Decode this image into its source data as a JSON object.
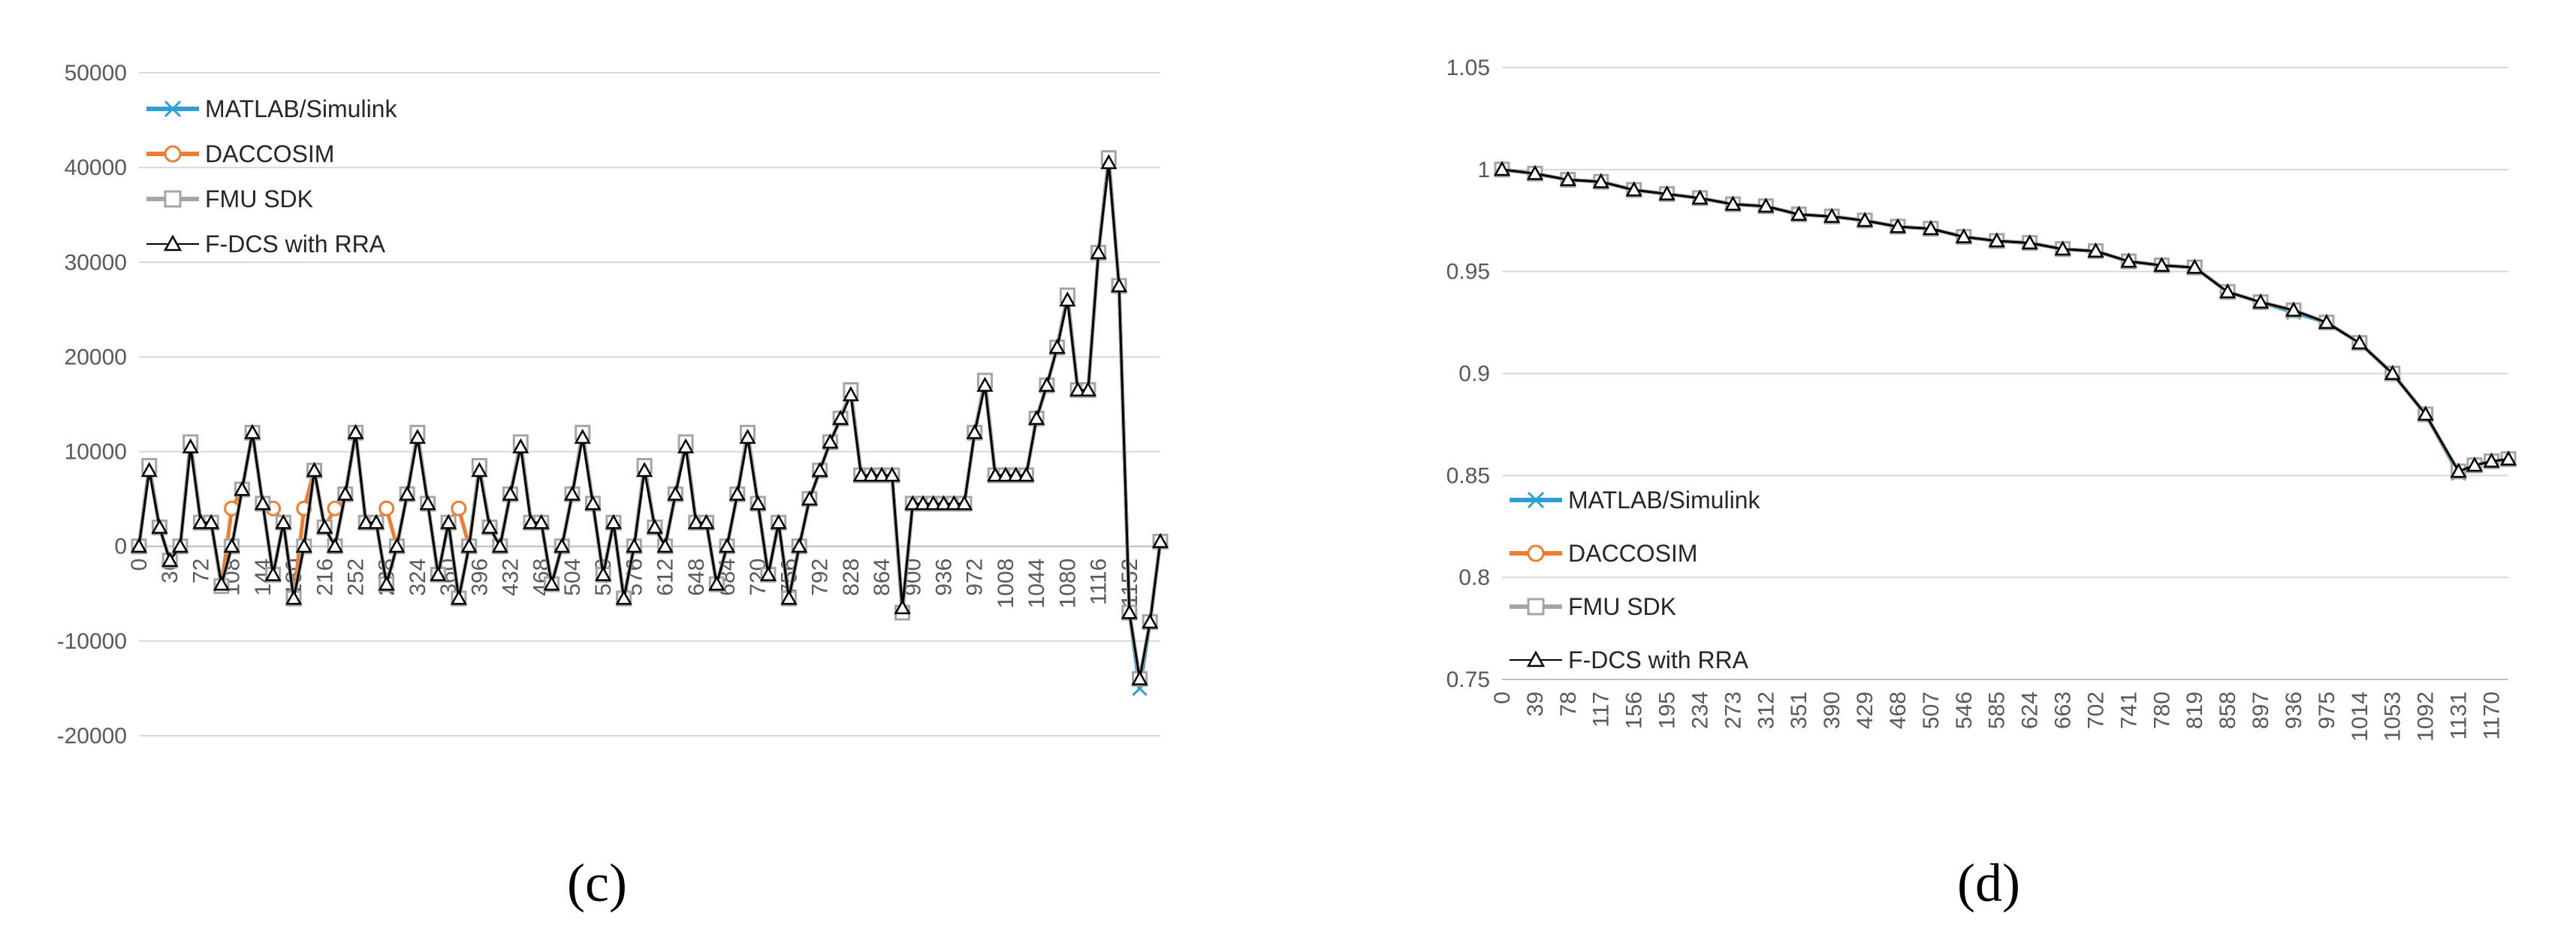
{
  "chart_data": [
    {
      "type": "line",
      "panel_label": "(c)",
      "title": "",
      "xlabel": "",
      "ylabel": "",
      "ylim": [
        -20000,
        50000
      ],
      "y_ticks": [
        "50000",
        "40000",
        "30000",
        "20000",
        "10000",
        "0",
        "-10000",
        "-20000"
      ],
      "x_ticks": [
        "0",
        "36",
        "72",
        "108",
        "144",
        "180",
        "216",
        "252",
        "288",
        "324",
        "360",
        "396",
        "432",
        "468",
        "504",
        "540",
        "576",
        "612",
        "648",
        "684",
        "720",
        "756",
        "792",
        "828",
        "864",
        "900",
        "936",
        "972",
        "1008",
        "1044",
        "1080",
        "1116",
        "1152"
      ],
      "grid": true,
      "legend_position": "top-left",
      "legend": [
        "MATLAB/Simulink",
        "DACCOSIM",
        "FMU SDK",
        "F-DCS with RRA"
      ],
      "x": [
        0,
        12,
        24,
        36,
        48,
        60,
        72,
        84,
        96,
        108,
        120,
        132,
        144,
        156,
        168,
        180,
        192,
        204,
        216,
        228,
        240,
        252,
        264,
        276,
        288,
        300,
        312,
        324,
        336,
        348,
        360,
        372,
        384,
        396,
        408,
        420,
        432,
        444,
        456,
        468,
        480,
        492,
        504,
        516,
        528,
        540,
        552,
        564,
        576,
        588,
        600,
        612,
        624,
        636,
        648,
        660,
        672,
        684,
        696,
        708,
        720,
        732,
        744,
        756,
        768,
        780,
        792,
        804,
        816,
        828,
        840,
        852,
        864,
        876,
        888,
        900,
        912,
        924,
        936,
        948,
        960,
        972,
        984,
        996,
        1008,
        1020,
        1032,
        1044,
        1056,
        1068,
        1080,
        1092,
        1104,
        1116,
        1128,
        1140,
        1152,
        1164,
        1176,
        1188
      ],
      "series": [
        {
          "name": "MATLAB/Simulink",
          "color": "#2e9fd6",
          "marker": "x",
          "values": [
            0,
            8500,
            2000,
            -1500,
            0,
            11000,
            2500,
            2500,
            -4200,
            0,
            6000,
            12000,
            4500,
            -3000,
            2500,
            -5500,
            0,
            8000,
            2000,
            0,
            5500,
            12000,
            2500,
            2500,
            -4000,
            0,
            5500,
            12000,
            4500,
            -3000,
            2500,
            -5500,
            0,
            8500,
            2000,
            0,
            5500,
            11000,
            2500,
            2500,
            -4000,
            0,
            5500,
            12000,
            4500,
            -3000,
            2500,
            -5500,
            0,
            8500,
            2000,
            0,
            5500,
            11000,
            2500,
            2500,
            -4000,
            0,
            5500,
            12000,
            4500,
            -3000,
            2500,
            -5500,
            0,
            5000,
            8000,
            11000,
            13500,
            16500,
            7500,
            7500,
            7500,
            7500,
            -7000,
            4500,
            4500,
            4500,
            4500,
            4500,
            4500,
            12000,
            17500,
            7500,
            7500,
            7500,
            7500,
            13500,
            17000,
            21000,
            26500,
            16500,
            16500,
            31000,
            41000,
            27500,
            -7000,
            -15000,
            -8000,
            500
          ]
        },
        {
          "name": "DACCOSIM",
          "color": "#ed7d31",
          "marker": "o",
          "values": [
            0,
            8500,
            2000,
            -1500,
            0,
            11000,
            2500,
            2500,
            -4200,
            4000,
            6000,
            12000,
            4500,
            4000,
            2500,
            -5500,
            4000,
            8000,
            2000,
            4000,
            5500,
            12000,
            2500,
            2500,
            4000,
            0,
            5500,
            12000,
            4500,
            -3000,
            2500,
            4000,
            0,
            8500,
            2000,
            0,
            5500,
            11000,
            2500,
            2500,
            -4000,
            0,
            5500,
            12000,
            4500,
            -3000,
            2500,
            -5500,
            0,
            8500,
            2000,
            0,
            5500,
            11000,
            2500,
            2500,
            -4000,
            0,
            5500,
            12000,
            4500,
            -3000,
            2500,
            -5500,
            0,
            5000,
            8000,
            11000,
            13500,
            16500,
            7500,
            7500,
            7500,
            7500,
            -7000,
            4500,
            4500,
            4500,
            4500,
            4500,
            4500,
            12000,
            17500,
            7500,
            7500,
            7500,
            7500,
            13500,
            17000,
            21000,
            26500,
            16500,
            16500,
            31000,
            41000,
            27500,
            -7000,
            -14000,
            -8000,
            500
          ]
        },
        {
          "name": "FMU SDK",
          "color": "#a5a5a5",
          "marker": "square",
          "values": [
            0,
            8500,
            2000,
            -1500,
            0,
            11000,
            2500,
            2500,
            -4200,
            0,
            6000,
            12000,
            4500,
            -3000,
            2500,
            -5500,
            0,
            8000,
            2000,
            0,
            5500,
            12000,
            2500,
            2500,
            -4000,
            0,
            5500,
            12000,
            4500,
            -3000,
            2500,
            -5500,
            0,
            8500,
            2000,
            0,
            5500,
            11000,
            2500,
            2500,
            -4000,
            0,
            5500,
            12000,
            4500,
            -3000,
            2500,
            -5500,
            0,
            8500,
            2000,
            0,
            5500,
            11000,
            2500,
            2500,
            -4000,
            0,
            5500,
            12000,
            4500,
            -3000,
            2500,
            -5500,
            0,
            5000,
            8000,
            11000,
            13500,
            16500,
            7500,
            7500,
            7500,
            7500,
            -7000,
            4500,
            4500,
            4500,
            4500,
            4500,
            4500,
            12000,
            17500,
            7500,
            7500,
            7500,
            7500,
            13500,
            17000,
            21000,
            26500,
            16500,
            16500,
            31000,
            41000,
            27500,
            -7000,
            -14000,
            -8000,
            500
          ]
        },
        {
          "name": "F-DCS with RRA",
          "color": "#000000",
          "marker": "triangle",
          "values": [
            0,
            8000,
            2000,
            -1500,
            0,
            10500,
            2500,
            2500,
            -4000,
            0,
            6000,
            12000,
            4500,
            -3000,
            2500,
            -5500,
            0,
            8000,
            2000,
            0,
            5500,
            12000,
            2500,
            2500,
            -4000,
            0,
            5500,
            11500,
            4500,
            -3000,
            2500,
            -5500,
            0,
            8000,
            2000,
            0,
            5500,
            10500,
            2500,
            2500,
            -4000,
            0,
            5500,
            11500,
            4500,
            -3000,
            2500,
            -5500,
            0,
            8000,
            2000,
            0,
            5500,
            10500,
            2500,
            2500,
            -4000,
            0,
            5500,
            11500,
            4500,
            -3000,
            2500,
            -5500,
            0,
            5000,
            8000,
            11000,
            13500,
            16000,
            7500,
            7500,
            7500,
            7500,
            -6500,
            4500,
            4500,
            4500,
            4500,
            4500,
            4500,
            12000,
            17000,
            7500,
            7500,
            7500,
            7500,
            13500,
            17000,
            21000,
            26000,
            16500,
            16500,
            31000,
            40500,
            27500,
            -7000,
            -14000,
            -8000,
            500
          ]
        }
      ]
    },
    {
      "type": "line",
      "panel_label": "(d)",
      "title": "",
      "xlabel": "",
      "ylabel": "",
      "ylim": [
        0.75,
        1.05
      ],
      "y_ticks": [
        "1.05",
        "1",
        "0.95",
        "0.9",
        "0.85",
        "0.8",
        "0.75"
      ],
      "x_ticks": [
        "0",
        "39",
        "78",
        "117",
        "156",
        "195",
        "234",
        "273",
        "312",
        "351",
        "390",
        "429",
        "468",
        "507",
        "546",
        "585",
        "624",
        "663",
        "702",
        "741",
        "780",
        "819",
        "858",
        "897",
        "936",
        "975",
        "1014",
        "1053",
        "1092",
        "1131",
        "1170"
      ],
      "grid": true,
      "legend_position": "bottom-left",
      "legend": [
        "MATLAB/Simulink",
        "DACCOSIM",
        "FMU SDK",
        "F-DCS with RRA"
      ],
      "x": [
        0,
        39,
        78,
        117,
        156,
        195,
        234,
        273,
        312,
        351,
        390,
        429,
        468,
        507,
        546,
        585,
        624,
        663,
        702,
        741,
        780,
        819,
        858,
        897,
        936,
        975,
        1014,
        1053,
        1092,
        1131,
        1150,
        1170,
        1190
      ],
      "series": [
        {
          "name": "MATLAB/Simulink",
          "color": "#2e9fd6",
          "marker": "x",
          "values": [
            1.0,
            0.998,
            0.995,
            0.994,
            0.99,
            0.988,
            0.986,
            0.983,
            0.982,
            0.978,
            0.977,
            0.975,
            0.972,
            0.971,
            0.967,
            0.965,
            0.964,
            0.961,
            0.96,
            0.955,
            0.953,
            0.952,
            0.94,
            0.935,
            0.93,
            0.925,
            0.915,
            0.9,
            0.88,
            0.851,
            0.855,
            0.857,
            0.858
          ]
        },
        {
          "name": "DACCOSIM",
          "color": "#ed7d31",
          "marker": "o",
          "values": [
            1.0,
            0.998,
            0.995,
            0.994,
            0.99,
            0.988,
            0.986,
            0.983,
            0.982,
            0.978,
            0.977,
            0.975,
            0.972,
            0.971,
            0.967,
            0.965,
            0.964,
            0.961,
            0.96,
            0.955,
            0.953,
            0.952,
            0.94,
            0.935,
            0.931,
            0.925,
            0.915,
            0.9,
            0.88,
            0.852,
            0.855,
            0.857,
            0.858
          ]
        },
        {
          "name": "FMU SDK",
          "color": "#a5a5a5",
          "marker": "square",
          "values": [
            1.0,
            0.998,
            0.995,
            0.994,
            0.99,
            0.988,
            0.986,
            0.983,
            0.982,
            0.978,
            0.977,
            0.975,
            0.972,
            0.971,
            0.967,
            0.965,
            0.964,
            0.961,
            0.96,
            0.955,
            0.953,
            0.952,
            0.94,
            0.935,
            0.931,
            0.925,
            0.915,
            0.9,
            0.88,
            0.852,
            0.855,
            0.857,
            0.858
          ]
        },
        {
          "name": "F-DCS with RRA",
          "color": "#000000",
          "marker": "triangle",
          "values": [
            1.0,
            0.998,
            0.995,
            0.994,
            0.99,
            0.988,
            0.986,
            0.983,
            0.982,
            0.978,
            0.977,
            0.975,
            0.972,
            0.971,
            0.967,
            0.965,
            0.964,
            0.961,
            0.96,
            0.955,
            0.953,
            0.952,
            0.94,
            0.935,
            0.931,
            0.925,
            0.915,
            0.9,
            0.88,
            0.852,
            0.855,
            0.857,
            0.858
          ]
        }
      ]
    }
  ]
}
